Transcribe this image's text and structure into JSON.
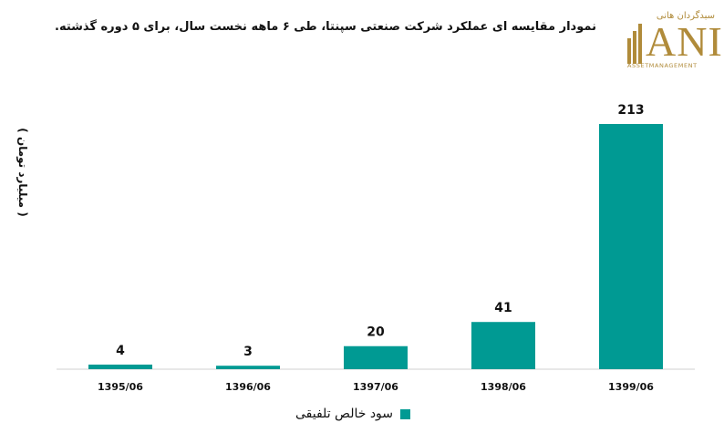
{
  "header": {
    "title": "نمودار مقایسه ای عملکرد شرکت صنعتی سپنتا، طی ۶ ماهه نخست سال، برای ۵ دوره گذشته."
  },
  "logo": {
    "fa_text": "سبدگردان هانی",
    "mark_text": "ANI",
    "sub_text": "ASSETMANAGEMENT",
    "color": "#b08b3a"
  },
  "chart_data": {
    "type": "bar",
    "title": "نمودار مقایسه ای عملکرد شرکت صنعتی سپنتا، طی ۶ ماهه نخست سال، برای ۵ دوره گذشته.",
    "xlabel": "",
    "ylabel": "( میلیارد تومان )",
    "categories": [
      "1395/06",
      "1396/06",
      "1397/06",
      "1398/06",
      "1399/06"
    ],
    "series": [
      {
        "name": "سود خالص تلفیقی",
        "values": [
          4,
          3,
          20,
          41,
          213
        ],
        "color": "#009a93"
      }
    ],
    "ylim": [
      0,
      213
    ],
    "grid": false,
    "legend": "bottom-center",
    "data_labels": true
  }
}
